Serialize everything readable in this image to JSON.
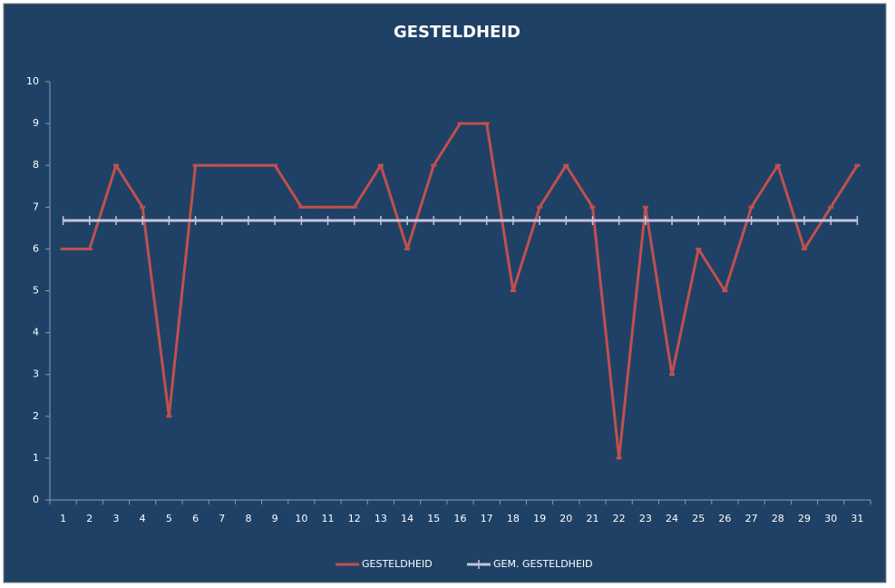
{
  "chart_data": {
    "type": "line",
    "title": "GESTELDHEID",
    "categories": [
      "1",
      "2",
      "3",
      "4",
      "5",
      "6",
      "7",
      "8",
      "9",
      "10",
      "11",
      "12",
      "13",
      "14",
      "15",
      "16",
      "17",
      "18",
      "19",
      "20",
      "21",
      "22",
      "23",
      "24",
      "25",
      "26",
      "27",
      "28",
      "29",
      "30",
      "31"
    ],
    "series": [
      {
        "name": "GESTELDHEID",
        "color": "#c0504d",
        "values": [
          6,
          6,
          8,
          7,
          2,
          8,
          8,
          8,
          8,
          7,
          7,
          7,
          8,
          6,
          8,
          9,
          9,
          5,
          7,
          8,
          7,
          1,
          7,
          3,
          6,
          5,
          7,
          8,
          6,
          7,
          8
        ]
      },
      {
        "name": "GEM. GESTELDHEID",
        "color": "#c6c3dc",
        "values": [
          6.68,
          6.68,
          6.68,
          6.68,
          6.68,
          6.68,
          6.68,
          6.68,
          6.68,
          6.68,
          6.68,
          6.68,
          6.68,
          6.68,
          6.68,
          6.68,
          6.68,
          6.68,
          6.68,
          6.68,
          6.68,
          6.68,
          6.68,
          6.68,
          6.68,
          6.68,
          6.68,
          6.68,
          6.68,
          6.68,
          6.68
        ]
      }
    ],
    "ylim": [
      0,
      10
    ],
    "yticks": [
      0,
      1,
      2,
      3,
      4,
      5,
      6,
      7,
      8,
      9,
      10
    ],
    "grid": false,
    "legend": "bottom"
  }
}
